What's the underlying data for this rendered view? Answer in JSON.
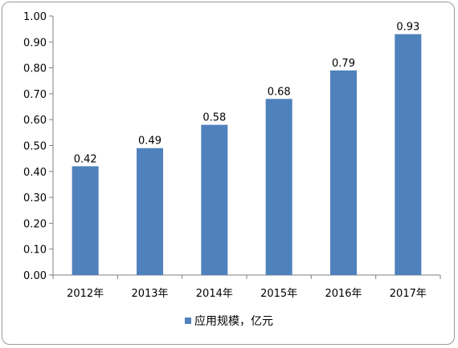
{
  "chart_data": {
    "type": "bar",
    "categories": [
      "2012年",
      "2013年",
      "2014年",
      "2015年",
      "2016年",
      "2017年"
    ],
    "series": [
      {
        "name": "应用规模，亿元",
        "values": [
          0.42,
          0.49,
          0.58,
          0.68,
          0.79,
          0.93
        ]
      }
    ],
    "data_labels": [
      "0.42",
      "0.49",
      "0.58",
      "0.68",
      "0.79",
      "0.93"
    ],
    "y_ticks": [
      "0.00",
      "0.10",
      "0.20",
      "0.30",
      "0.40",
      "0.50",
      "0.60",
      "0.70",
      "0.80",
      "0.90",
      "1.00"
    ],
    "ylim": [
      0,
      1.0
    ],
    "legend_position": "bottom",
    "grid": false,
    "bar_color": "#4f81bd"
  }
}
